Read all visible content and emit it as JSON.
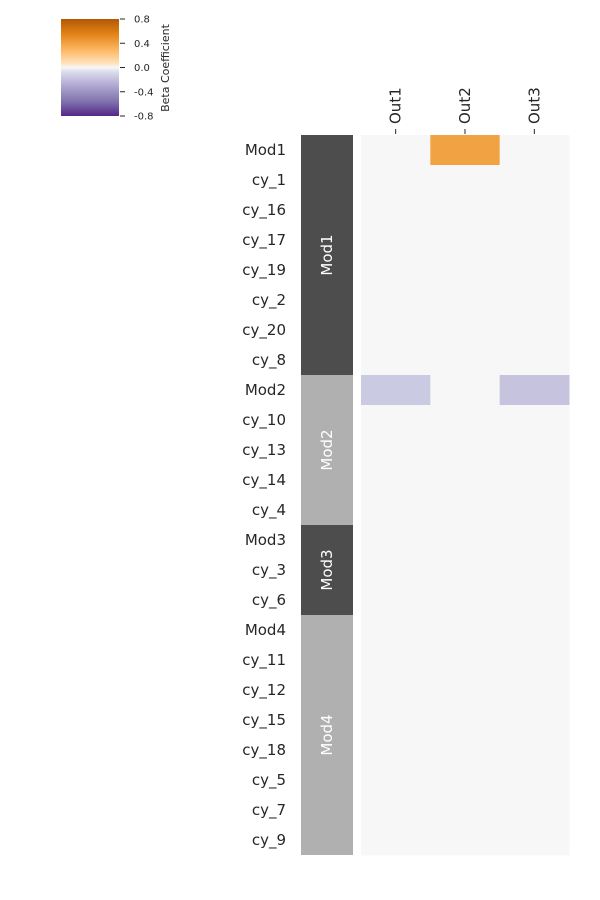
{
  "chart_data": {
    "type": "heatmap",
    "columns": [
      "Out1",
      "Out2",
      "Out3"
    ],
    "rows": [
      "Mod1",
      "cy_1",
      "cy_16",
      "cy_17",
      "cy_19",
      "cy_2",
      "cy_20",
      "cy_8",
      "Mod2",
      "cy_10",
      "cy_13",
      "cy_14",
      "cy_4",
      "Mod3",
      "cy_3",
      "cy_6",
      "Mod4",
      "cy_11",
      "cy_12",
      "cy_15",
      "cy_18",
      "cy_5",
      "cy_7",
      "cy_9"
    ],
    "values": [
      [
        0.0,
        0.4,
        0.0
      ],
      [
        0.0,
        0.0,
        0.0
      ],
      [
        0.0,
        0.0,
        0.0
      ],
      [
        0.0,
        0.0,
        0.0
      ],
      [
        0.0,
        0.0,
        0.0
      ],
      [
        0.0,
        0.0,
        0.0
      ],
      [
        0.0,
        0.0,
        0.0
      ],
      [
        0.0,
        0.0,
        0.0
      ],
      [
        -0.15,
        0.0,
        -0.18
      ],
      [
        0.0,
        0.0,
        0.0
      ],
      [
        0.0,
        0.0,
        0.0
      ],
      [
        0.0,
        0.0,
        0.0
      ],
      [
        0.0,
        0.0,
        0.0
      ],
      [
        0.0,
        0.0,
        0.0
      ],
      [
        0.0,
        0.0,
        0.0
      ],
      [
        0.0,
        0.0,
        0.0
      ],
      [
        0.0,
        0.0,
        0.0
      ],
      [
        0.0,
        0.0,
        0.0
      ],
      [
        0.0,
        0.0,
        0.0
      ],
      [
        0.0,
        0.0,
        0.0
      ],
      [
        0.0,
        0.0,
        0.0
      ],
      [
        0.0,
        0.0,
        0.0
      ],
      [
        0.0,
        0.0,
        0.0
      ],
      [
        0.0,
        0.0,
        0.0
      ]
    ],
    "modules": [
      {
        "name": "Mod1",
        "start": 0,
        "count": 8,
        "color": "#4d4d4d"
      },
      {
        "name": "Mod2",
        "start": 8,
        "count": 5,
        "color": "#b0b0b0"
      },
      {
        "name": "Mod3",
        "start": 13,
        "count": 3,
        "color": "#4d4d4d"
      },
      {
        "name": "Mod4",
        "start": 16,
        "count": 8,
        "color": "#b0b0b0"
      }
    ],
    "colorbar": {
      "label": "Beta Coefficient",
      "range": [
        -0.8,
        0.8
      ],
      "ticks": [
        "0.8",
        "0.4",
        "0.0",
        "-0.4",
        "-0.8"
      ],
      "colormap": "PuOr_r",
      "placement": "top-left"
    }
  }
}
